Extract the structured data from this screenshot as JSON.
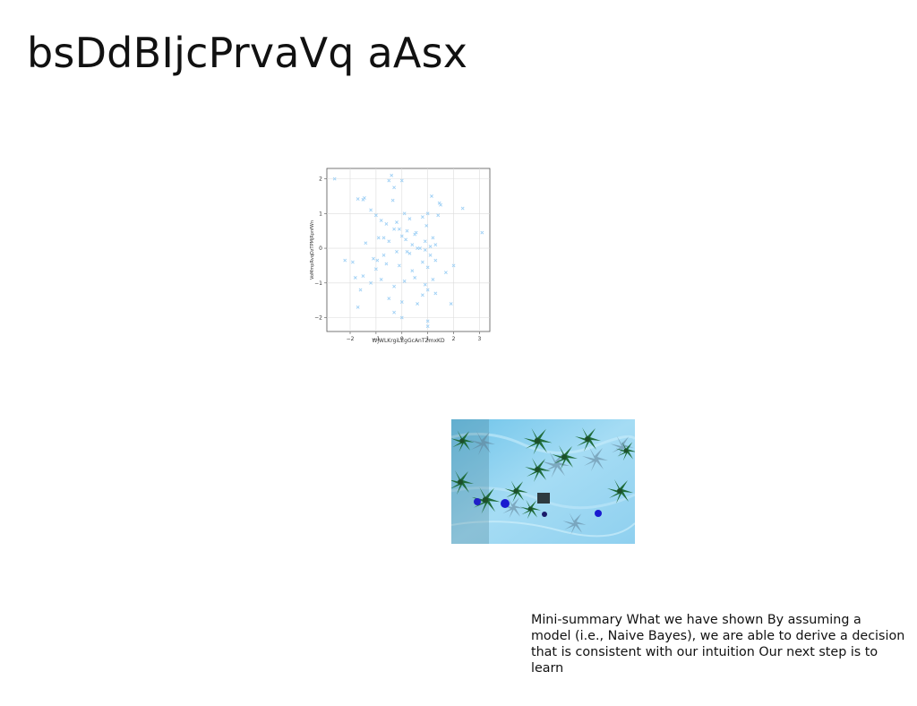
{
  "slide": {
    "title": "bsDdBIjcPrvaVq aAsx",
    "summary_lines": [
      "Mini-summary What we have shown By assuming a",
      "model (i.e., Naive Bayes), we are able to derive a decision",
      "that is consistent with our intuition Our next step is to learn"
    ]
  },
  "chart_data": {
    "type": "scatter",
    "xlabel": "WjWLKrgiLEgGcAnTZmxKD",
    "ylabel": "VoMmpRvqDzTPMjRpnfWn",
    "xlim": [
      -2.9,
      3.4
    ],
    "ylim": [
      -2.4,
      2.3
    ],
    "xticks": [
      -2,
      -1,
      0,
      1,
      2,
      3
    ],
    "yticks": [
      -2,
      -1,
      0,
      1,
      2
    ],
    "xtick_labels": [
      "−2",
      "−1",
      "0",
      "1",
      "2",
      "3"
    ],
    "ytick_labels": [
      "−2",
      "−1",
      "0",
      "1",
      "2"
    ],
    "grid": true,
    "marker": "x",
    "color": "#9fd0f5",
    "x": [
      -2.6,
      -1.7,
      -1.5,
      -1.45,
      -0.4,
      -0.3,
      -0.5,
      -0.35,
      0.0,
      1.15,
      1.45,
      1.5,
      2.35,
      3.1,
      -1.2,
      -1.0,
      -0.8,
      -0.6,
      -0.2,
      0.1,
      0.3,
      0.8,
      1.0,
      1.4,
      -0.7,
      -0.3,
      0.0,
      0.2,
      0.5,
      0.9,
      1.2,
      -1.4,
      -0.9,
      -0.5,
      0.15,
      0.4,
      0.7,
      1.1,
      1.3,
      -2.2,
      -1.9,
      -1.1,
      -0.7,
      -0.2,
      0.3,
      0.6,
      0.9,
      1.1,
      2.0,
      -1.8,
      -1.5,
      -1.0,
      -0.6,
      -0.1,
      0.4,
      0.8,
      1.0,
      1.3,
      1.7,
      -1.6,
      -1.2,
      -0.8,
      -0.3,
      0.1,
      0.5,
      1.0,
      1.3,
      -1.7,
      -0.5,
      0.0,
      0.6,
      0.9,
      1.9,
      -0.3,
      0.0,
      0.8,
      1.0,
      -0.1,
      1.0,
      0.95,
      -0.95,
      0.2,
      0.55,
      1.2
    ],
    "y": [
      2.0,
      1.42,
      1.4,
      1.45,
      2.1,
      1.75,
      1.95,
      1.38,
      1.95,
      1.5,
      1.3,
      1.25,
      1.15,
      0.45,
      1.1,
      0.95,
      0.8,
      0.7,
      0.75,
      1.0,
      0.85,
      0.9,
      1.0,
      0.95,
      0.3,
      0.55,
      0.35,
      0.5,
      0.4,
      0.2,
      0.3,
      0.15,
      0.3,
      0.2,
      0.25,
      0.1,
      0.0,
      0.05,
      0.1,
      -0.35,
      -0.4,
      -0.3,
      -0.2,
      -0.1,
      -0.15,
      0.0,
      -0.05,
      -0.2,
      -0.5,
      -0.85,
      -0.8,
      -0.6,
      -0.45,
      -0.5,
      -0.65,
      -0.4,
      -0.55,
      -0.35,
      -0.7,
      -1.2,
      -1.0,
      -0.9,
      -1.1,
      -0.95,
      -0.85,
      -1.2,
      -1.3,
      -1.7,
      -1.45,
      -1.55,
      -1.6,
      -1.05,
      -1.6,
      -1.85,
      -2.0,
      -1.35,
      -2.1,
      0.55,
      -2.25,
      0.65,
      -0.35,
      -0.1,
      0.45,
      -0.9
    ]
  }
}
